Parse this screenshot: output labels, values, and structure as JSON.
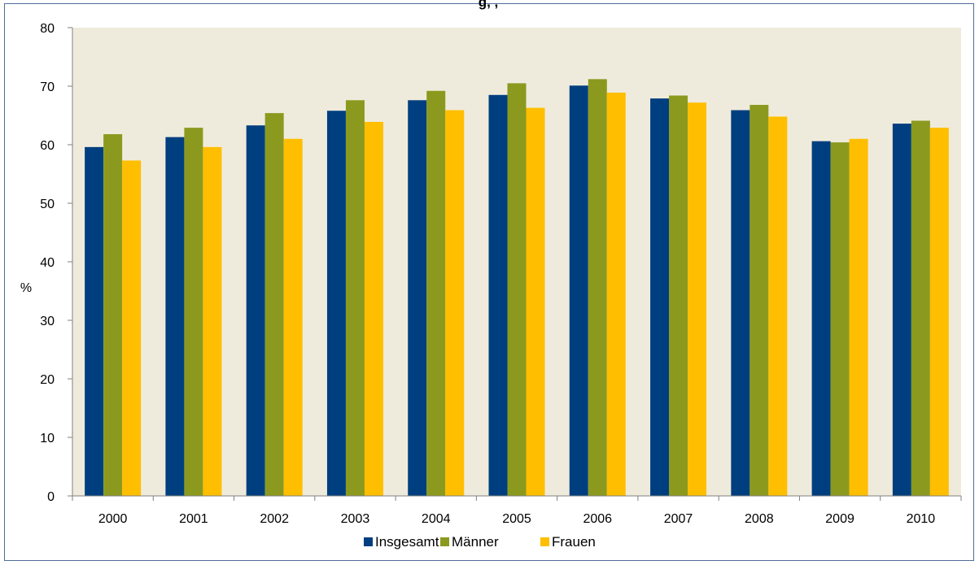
{
  "chart_data": {
    "type": "bar",
    "title": "",
    "title_partial": "g,          ,",
    "xlabel": "",
    "ylabel": "%",
    "ylim": [
      0,
      80
    ],
    "yticks": [
      0,
      10,
      20,
      30,
      40,
      50,
      60,
      70,
      80
    ],
    "grid": false,
    "legend_position": "bottom",
    "categories": [
      "2000",
      "2001",
      "2002",
      "2003",
      "2004",
      "2005",
      "2006",
      "2007",
      "2008",
      "2009",
      "2010"
    ],
    "series": [
      {
        "name": "Insgesamt",
        "color": "#003f7f",
        "values": [
          59.6,
          61.3,
          63.3,
          65.8,
          67.6,
          68.5,
          70.1,
          67.9,
          65.9,
          60.6,
          63.6
        ]
      },
      {
        "name": "Männer",
        "color": "#8b9a1e",
        "values": [
          61.8,
          62.9,
          65.4,
          67.6,
          69.2,
          70.5,
          71.2,
          68.4,
          66.8,
          60.4,
          64.1
        ]
      },
      {
        "name": "Frauen",
        "color": "#ffbe00",
        "values": [
          57.3,
          59.6,
          61.0,
          63.9,
          65.9,
          66.3,
          68.9,
          67.2,
          64.8,
          61.0,
          62.9
        ]
      }
    ],
    "colors": {
      "plot_background": "#efebdc",
      "axis": "#808080",
      "frame_border": "#4f6d9a"
    }
  }
}
